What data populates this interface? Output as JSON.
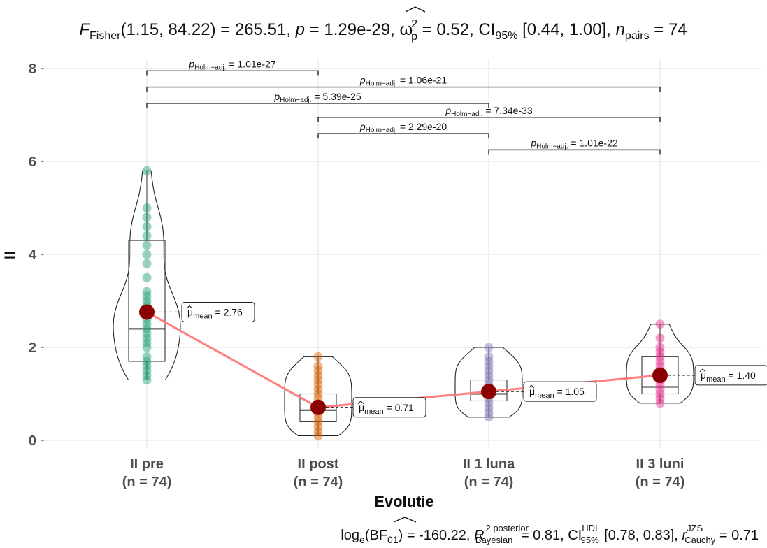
{
  "chart_data": {
    "type": "violin-box-scatter",
    "title_parts": {
      "stat_name": "F",
      "stat_sub": "Fisher",
      "stat_args": "(1.15, 84.22) = 265.51, ",
      "p_label": "p",
      "p_value": " = 1.29e-29, ",
      "effect_symbol": "ω",
      "effect_sup": "2",
      "effect_sub": "p",
      "effect_value": " = 0.52, CI",
      "ci_sub": "95%",
      "ci_value": " [0.44, 1.00], ",
      "n_label": "n",
      "n_sub": "pairs",
      "n_value": " = 74"
    },
    "xlabel": "Evolutie",
    "ylabel": "II",
    "ylim": [
      0,
      8
    ],
    "yticks": [
      0,
      2,
      4,
      6,
      8
    ],
    "grid": true,
    "categories": [
      {
        "label": "II pre",
        "n_label": "(n = 74)",
        "color": "#1b9e77"
      },
      {
        "label": "II post",
        "n_label": "(n = 74)",
        "color": "#d95f02"
      },
      {
        "label": "II 1 luna",
        "n_label": "(n = 74)",
        "color": "#7570b3"
      },
      {
        "label": "II 3 luni",
        "n_label": "(n = 74)",
        "color": "#e7298a"
      }
    ],
    "means": [
      2.76,
      0.71,
      1.05,
      1.4
    ],
    "mean_labels": [
      "2.76",
      "0.71",
      "1.05",
      "1.40"
    ],
    "mean_prefix": "μ",
    "mean_sub": "mean",
    "mean_eq": " = ",
    "mean_color": "#8b0000",
    "mean_line_color": "#ff7f7f",
    "boxes": [
      {
        "q1": 1.7,
        "median": 2.4,
        "q3": 4.3,
        "lo": 1.3,
        "hi": 5.8
      },
      {
        "q1": 0.4,
        "median": 0.65,
        "q3": 1.0,
        "lo": 0.1,
        "hi": 1.8
      },
      {
        "q1": 0.85,
        "median": 1.0,
        "q3": 1.3,
        "lo": 0.5,
        "hi": 2.0
      },
      {
        "q1": 1.0,
        "median": 1.15,
        "q3": 1.8,
        "lo": 0.8,
        "hi": 2.5
      }
    ],
    "points": [
      [
        1.3,
        1.4,
        1.5,
        1.6,
        1.7,
        1.8,
        2.0,
        2.1,
        2.2,
        2.3,
        2.4,
        2.5,
        2.6,
        2.7,
        2.8,
        2.9,
        3.0,
        3.1,
        3.2,
        3.5,
        3.8,
        4.0,
        4.2,
        4.4,
        4.6,
        4.8,
        5.0,
        5.8
      ],
      [
        0.1,
        0.2,
        0.3,
        0.4,
        0.5,
        0.6,
        0.7,
        0.8,
        0.9,
        1.0,
        1.1,
        1.2,
        1.3,
        1.4,
        1.5,
        1.6,
        1.8
      ],
      [
        0.5,
        0.6,
        0.7,
        0.8,
        0.9,
        1.0,
        1.1,
        1.2,
        1.3,
        1.4,
        1.5,
        1.6,
        1.7,
        1.8,
        2.0
      ],
      [
        0.8,
        0.9,
        1.0,
        1.1,
        1.2,
        1.3,
        1.4,
        1.5,
        1.6,
        1.7,
        1.8,
        1.9,
        2.0,
        2.2,
        2.5
      ]
    ],
    "comparisons": [
      {
        "from": 0,
        "to": 1,
        "y": 7.95,
        "p_text": "p",
        "p_sub": "Holm−adj.",
        "value": " = 1.01e-27"
      },
      {
        "from": 0,
        "to": 3,
        "y": 7.6,
        "p_text": "p",
        "p_sub": "Holm−adj.",
        "value": " = 1.06e-21"
      },
      {
        "from": 0,
        "to": 2,
        "y": 7.25,
        "p_text": "p",
        "p_sub": "Holm−adj.",
        "value": " = 5.39e-25"
      },
      {
        "from": 1,
        "to": 3,
        "y": 6.95,
        "p_text": "p",
        "p_sub": "Holm−adj.",
        "value": " = 7.34e-33"
      },
      {
        "from": 1,
        "to": 2,
        "y": 6.6,
        "p_text": "p",
        "p_sub": "Holm−adj.",
        "value": " = 2.29e-20"
      },
      {
        "from": 2,
        "to": 3,
        "y": 6.25,
        "p_text": "p",
        "p_sub": "Holm−adj.",
        "value": " = 1.01e-22"
      }
    ],
    "caption_parts": {
      "bf_prefix": "log",
      "bf_sub": "e",
      "bf_mid": "(BF",
      "bf_mid_sub": "01",
      "bf_value": ") = -160.22, ",
      "r2_symbol": "R",
      "r2_sup": "2 posterior",
      "r2_sub": "Bayesian",
      "r2_value": " = 0.81, CI",
      "ci_sup": "HDI",
      "ci_sub": "95%",
      "ci_value": " [0.78, 0.83], ",
      "r_symbol": "r",
      "r_sup": "JZS",
      "r_sub": "Cauchy",
      "r_value": " = 0.71"
    }
  }
}
